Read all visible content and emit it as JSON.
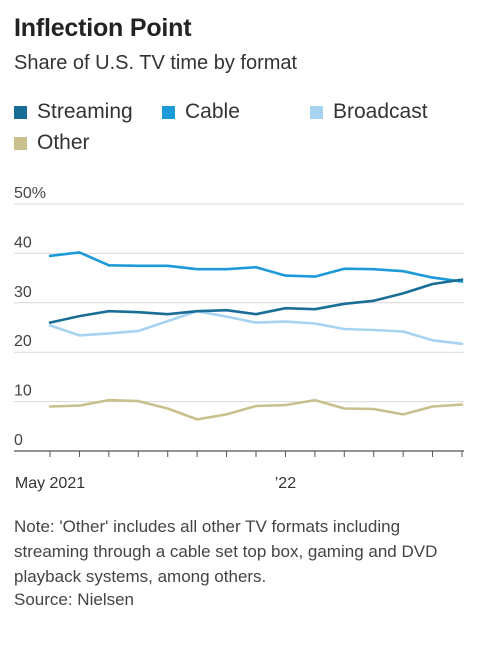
{
  "title": "Inflection Point",
  "subtitle": "Share of U.S. TV time by format",
  "note": "Note: 'Other' includes all other TV formats including streaming through a cable set top box, gaming and DVD playback systems, among others.",
  "source": "Source: Nielsen",
  "chart_data": {
    "type": "line",
    "title": "Inflection Point",
    "subtitle": "Share of U.S. TV time by format",
    "xlabel": "",
    "ylabel": "",
    "x": [
      "2021-05",
      "2021-06",
      "2021-07",
      "2021-08",
      "2021-09",
      "2021-10",
      "2021-11",
      "2021-12",
      "2022-01",
      "2022-02",
      "2022-03",
      "2022-04",
      "2022-05",
      "2022-06",
      "2022-07"
    ],
    "x_tick_labels": [
      {
        "x": "2021-05",
        "label": "May 2021"
      },
      {
        "x": "2022-01",
        "label": "’22"
      }
    ],
    "ylim": [
      0,
      50
    ],
    "y_ticks": [
      0,
      10,
      20,
      30,
      40,
      50
    ],
    "y_tick_labels": [
      "0",
      "10",
      "20",
      "30",
      "40",
      "50%"
    ],
    "grid": true,
    "legend_position": "top-left",
    "series": [
      {
        "name": "Streaming",
        "color": "#1a6e96",
        "values": [
          26.0,
          27.3,
          28.3,
          28.1,
          27.7,
          28.3,
          28.5,
          27.7,
          28.9,
          28.7,
          29.8,
          30.4,
          31.9,
          33.8,
          34.7
        ]
      },
      {
        "name": "Cable",
        "color": "#1d9ad8",
        "values": [
          39.5,
          40.2,
          37.6,
          37.5,
          37.5,
          36.8,
          36.8,
          37.2,
          35.5,
          35.3,
          36.9,
          36.8,
          36.4,
          35.1,
          34.3
        ]
      },
      {
        "name": "Broadcast",
        "color": "#a6d4f0",
        "values": [
          25.4,
          23.4,
          23.8,
          24.3,
          26.3,
          28.3,
          27.2,
          26.0,
          26.2,
          25.8,
          24.7,
          24.5,
          24.2,
          22.4,
          21.7
        ]
      },
      {
        "name": "Other",
        "color": "#c9c08e",
        "values": [
          9.0,
          9.2,
          10.3,
          10.1,
          8.6,
          6.4,
          7.4,
          9.1,
          9.3,
          10.3,
          8.6,
          8.5,
          7.4,
          9.0,
          9.4
        ]
      }
    ]
  }
}
